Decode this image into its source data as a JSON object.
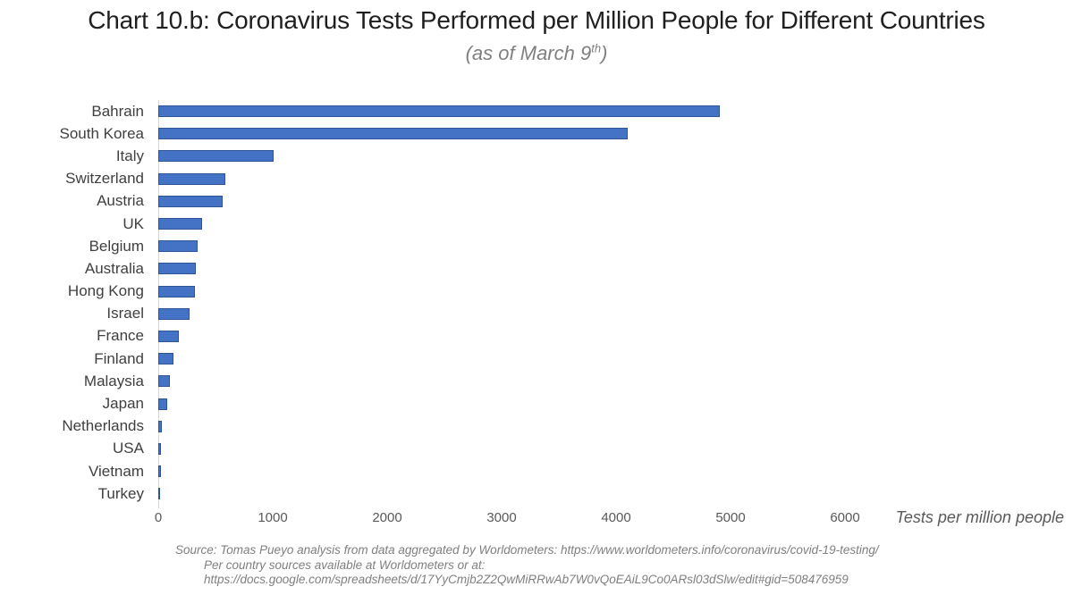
{
  "page": {
    "title": "Chart 10.b: Coronavirus Tests Performed per Million People for Different Countries",
    "subtitle": {
      "prefix": "(as of March 9",
      "superscript": "th",
      "suffix": ")"
    }
  },
  "chart_data": {
    "type": "bar",
    "orientation": "horizontal",
    "title": "Chart 10.b: Coronavirus Tests Performed per Million People for Different Countries",
    "subtitle": "(as of March 9th)",
    "categories": [
      "Bahrain",
      "South Korea",
      "Italy",
      "Switzerland",
      "Austria",
      "UK",
      "Belgium",
      "Australia",
      "Hong Kong",
      "Israel",
      "France",
      "Finland",
      "Malaysia",
      "Japan",
      "Netherlands",
      "USA",
      "Vietnam",
      "Turkey"
    ],
    "values": [
      4910,
      4099,
      1005,
      585,
      560,
      385,
      340,
      325,
      320,
      270,
      180,
      130,
      100,
      75,
      34,
      26,
      20,
      8
    ],
    "xlabel": "Tests per million people",
    "ylabel": "",
    "xlim": [
      0,
      6000
    ],
    "xticks": [
      0,
      1000,
      2000,
      3000,
      4000,
      5000,
      6000
    ],
    "grid": false,
    "legend": false,
    "bar_color": "#4472C4",
    "bar_border_color": "#2F5597",
    "axis_line_color": "#d6d6d6"
  },
  "source": {
    "line1": "Source: Tomas Pueyo analysis from data aggregated by Worldometers: https://www.worldometers.info/coronavirus/covid-19-testing/",
    "line2": "Per country sources available at Worldometers or at:",
    "line3": "https://docs.google.com/spreadsheets/d/17YyCmjb2Z2QwMiRRwAb7W0vQoEAiL9Co0ARsl03dSlw/edit#gid=508476959"
  }
}
